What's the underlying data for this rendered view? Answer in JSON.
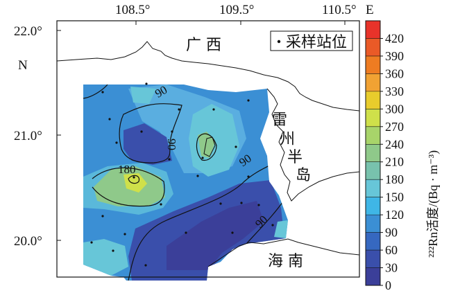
{
  "map": {
    "lon_labels": [
      "108.5°",
      "109.5°",
      "110.5°"
    ],
    "lon_suffix": "E",
    "lat_labels": [
      "22.0°",
      "21.0°",
      "20.0°"
    ],
    "lat_suffix": "N",
    "legend_label": "采样站位",
    "places": {
      "guangxi": "广 西",
      "leizhou_1": "雷",
      "leizhou_2": "州",
      "leizhou_3": "半",
      "leizhou_4": "岛",
      "hainan": "海 南"
    },
    "contour_labels": [
      "90",
      "90",
      "180",
      "90",
      "90"
    ]
  },
  "colorbar": {
    "title": "²²²Rn活度/(Bq · m⁻³)",
    "ticks": [
      "420",
      "390",
      "360",
      "330",
      "300",
      "270",
      "240",
      "210",
      "180",
      "150",
      "120",
      "90",
      "60",
      "30",
      "0"
    ],
    "colors": [
      "#e8332a",
      "#ea5a27",
      "#ee7c22",
      "#f1a233",
      "#e8cc2c",
      "#cfe04a",
      "#a8d46a",
      "#8fc98a",
      "#78c2ad",
      "#67c6d8",
      "#3fb6e6",
      "#3b8fd4",
      "#3668c0",
      "#3a4fab",
      "#3b3f99"
    ]
  },
  "chart_data": {
    "type": "heatmap",
    "variable": "²²²Rn",
    "units": "Bq · m⁻³",
    "scale_min": 0,
    "scale_max": 450,
    "labeled_contours": [
      90,
      180
    ],
    "x_ticks": [
      108.5,
      109.5,
      110.5
    ],
    "y_ticks": [
      22.0,
      21.0,
      20.0
    ]
  }
}
